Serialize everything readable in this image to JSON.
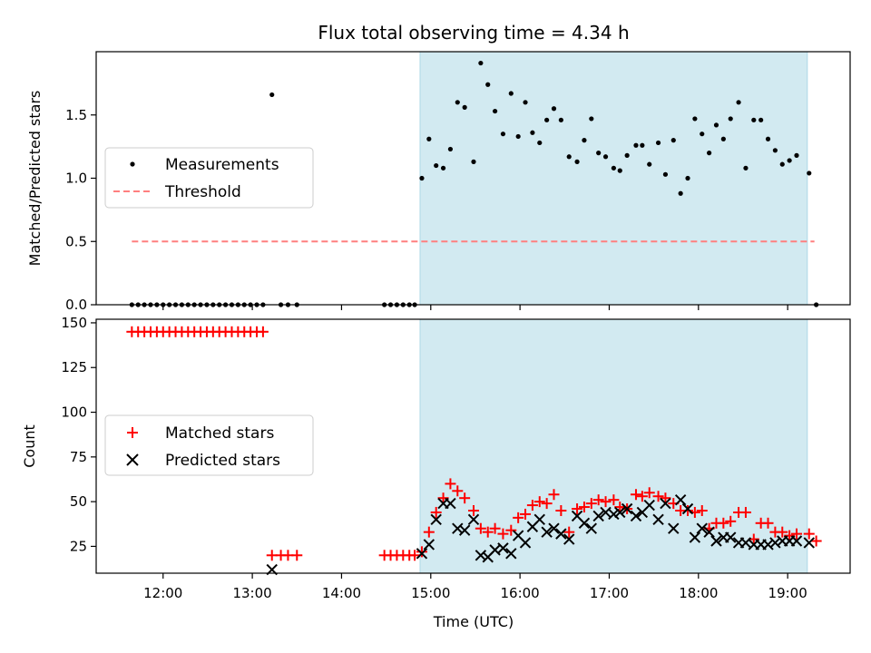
{
  "chart_data": {
    "type": "scatter",
    "title": "Flux total observing time = 4.34 h",
    "xlabel": "Time (UTC)",
    "x_unit": "hours UTC",
    "xlim": [
      11.25,
      19.7
    ],
    "x_ticks": [
      12,
      13,
      14,
      15,
      16,
      17,
      18,
      19
    ],
    "x_tick_labels": [
      "12:00",
      "13:00",
      "14:00",
      "15:00",
      "16:00",
      "17:00",
      "18:00",
      "19:00"
    ],
    "colors": {
      "shade": "#add8e6",
      "threshold": "#ff7f7f",
      "matched": "#ff0000",
      "measurement": "#000000",
      "predicted": "#000000"
    },
    "shaded_region": {
      "x": [
        14.88,
        19.22
      ]
    },
    "panels": [
      {
        "ylabel": "Matched/Predicted stars",
        "ylim": [
          0,
          2.0
        ],
        "y_ticks": [
          0.0,
          0.5,
          1.0,
          1.5
        ],
        "y_tick_labels": [
          "0.0",
          "0.5",
          "1.0",
          "1.5"
        ],
        "legend": {
          "placement": "center-left",
          "entries": [
            "Measurements",
            "Threshold"
          ]
        },
        "threshold": {
          "name": "Threshold",
          "y": 0.5,
          "x": [
            11.65,
            19.3
          ]
        },
        "measurements": {
          "name": "Measurements",
          "x": [
            11.65,
            11.72,
            11.79,
            11.86,
            11.93,
            12.0,
            12.07,
            12.14,
            12.21,
            12.28,
            12.35,
            12.42,
            12.49,
            12.56,
            12.63,
            12.7,
            12.77,
            12.84,
            12.91,
            12.98,
            13.05,
            13.12,
            13.22,
            13.32,
            13.4,
            13.5,
            14.48,
            14.55,
            14.62,
            14.69,
            14.76,
            14.82,
            14.9,
            14.98,
            15.06,
            15.14,
            15.22,
            15.3,
            15.38,
            15.48,
            15.56,
            15.64,
            15.72,
            15.81,
            15.9,
            15.98,
            16.06,
            16.14,
            16.22,
            16.3,
            16.38,
            16.46,
            16.55,
            16.64,
            16.72,
            16.8,
            16.88,
            16.96,
            17.05,
            17.12,
            17.2,
            17.3,
            17.37,
            17.45,
            17.55,
            17.63,
            17.72,
            17.8,
            17.88,
            17.96,
            18.04,
            18.12,
            18.2,
            18.28,
            18.36,
            18.45,
            18.53,
            18.62,
            18.7,
            18.78,
            18.86,
            18.94,
            19.02,
            19.1,
            19.24,
            19.32
          ],
          "y": [
            0,
            0,
            0,
            0,
            0,
            0,
            0,
            0,
            0,
            0,
            0,
            0,
            0,
            0,
            0,
            0,
            0,
            0,
            0,
            0,
            0,
            0,
            1.66,
            0,
            0,
            0,
            0,
            0,
            0,
            0,
            0,
            0,
            1.0,
            1.31,
            1.1,
            1.08,
            1.23,
            1.6,
            1.56,
            1.13,
            1.91,
            1.74,
            1.53,
            1.35,
            1.67,
            1.33,
            1.6,
            1.36,
            1.28,
            1.46,
            1.55,
            1.46,
            1.17,
            1.13,
            1.3,
            1.47,
            1.2,
            1.17,
            1.08,
            1.06,
            1.18,
            1.26,
            1.26,
            1.11,
            1.28,
            1.03,
            1.3,
            0.88,
            1.0,
            1.47,
            1.35,
            1.2,
            1.42,
            1.31,
            1.47,
            1.6,
            1.08,
            1.46,
            1.46,
            1.31,
            1.22,
            1.11,
            1.14,
            1.18,
            1.04,
            0
          ]
        }
      },
      {
        "ylabel": "Count",
        "ylim": [
          10,
          152
        ],
        "y_ticks": [
          25,
          50,
          75,
          100,
          125,
          150
        ],
        "y_tick_labels": [
          "25",
          "50",
          "75",
          "100",
          "125",
          "150"
        ],
        "legend": {
          "placement": "center-left",
          "entries": [
            "Matched stars",
            "Predicted stars"
          ]
        },
        "series": [
          {
            "name": "Matched stars",
            "marker": "+",
            "x": [
              11.65,
              11.72,
              11.79,
              11.86,
              11.93,
              12.0,
              12.07,
              12.14,
              12.21,
              12.28,
              12.35,
              12.42,
              12.49,
              12.56,
              12.63,
              12.7,
              12.77,
              12.84,
              12.91,
              12.98,
              13.05,
              13.12,
              13.22,
              13.32,
              13.4,
              13.5,
              14.48,
              14.55,
              14.62,
              14.69,
              14.76,
              14.82,
              14.9,
              14.98,
              15.06,
              15.14,
              15.22,
              15.3,
              15.38,
              15.48,
              15.56,
              15.64,
              15.72,
              15.81,
              15.9,
              15.98,
              16.06,
              16.14,
              16.22,
              16.3,
              16.38,
              16.46,
              16.55,
              16.64,
              16.72,
              16.8,
              16.88,
              16.96,
              17.05,
              17.12,
              17.2,
              17.3,
              17.37,
              17.45,
              17.55,
              17.63,
              17.72,
              17.8,
              17.88,
              17.96,
              18.04,
              18.12,
              18.2,
              18.28,
              18.36,
              18.45,
              18.53,
              18.62,
              18.7,
              18.78,
              18.86,
              18.94,
              19.02,
              19.1,
              19.24,
              19.32
            ],
            "y": [
              145,
              145,
              145,
              145,
              145,
              145,
              145,
              145,
              145,
              145,
              145,
              145,
              145,
              145,
              145,
              145,
              145,
              145,
              145,
              145,
              145,
              145,
              20,
              20,
              20,
              20,
              20,
              20,
              20,
              20,
              20,
              20,
              22,
              33,
              44,
              52,
              60,
              56,
              52,
              45,
              35,
              33,
              35,
              32,
              34,
              41,
              43,
              48,
              50,
              49,
              54,
              45,
              33,
              46,
              47,
              49,
              51,
              50,
              51,
              47,
              46,
              54,
              53,
              55,
              53,
              52,
              49,
              45,
              45,
              44,
              45,
              35,
              38,
              38,
              39,
              44,
              44,
              29,
              38,
              38,
              33,
              33,
              31,
              32,
              32,
              28
            ]
          },
          {
            "name": "Predicted stars",
            "marker": "x",
            "x": [
              13.22,
              14.9,
              14.98,
              15.06,
              15.14,
              15.22,
              15.3,
              15.38,
              15.48,
              15.56,
              15.64,
              15.72,
              15.81,
              15.9,
              15.98,
              16.06,
              16.14,
              16.22,
              16.3,
              16.38,
              16.46,
              16.55,
              16.64,
              16.72,
              16.8,
              16.88,
              16.96,
              17.05,
              17.12,
              17.2,
              17.3,
              17.37,
              17.45,
              17.55,
              17.63,
              17.72,
              17.8,
              17.88,
              17.96,
              18.04,
              18.12,
              18.2,
              18.28,
              18.36,
              18.45,
              18.53,
              18.62,
              18.7,
              18.78,
              18.86,
              18.94,
              19.02,
              19.1,
              19.24
            ],
            "y": [
              12,
              21,
              26,
              40,
              49,
              49,
              35,
              34,
              40,
              20,
              19,
              23,
              24,
              21,
              31,
              27,
              36,
              40,
              33,
              35,
              32,
              29,
              42,
              38,
              35,
              42,
              44,
              43,
              44,
              46,
              42,
              44,
              48,
              40,
              49,
              35,
              51,
              46,
              30,
              35,
              33,
              28,
              30,
              30,
              27,
              27,
              26,
              26,
              26,
              27,
              28,
              28,
              28,
              27
            ]
          }
        ]
      }
    ]
  }
}
